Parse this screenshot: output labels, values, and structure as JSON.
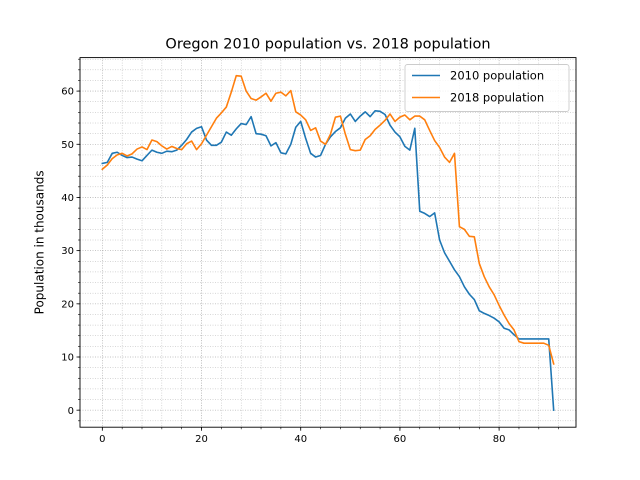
{
  "chart_data": {
    "type": "line",
    "title": "Oregon 2010 population vs. 2018 population",
    "xlabel": "",
    "ylabel": "Population in thousands",
    "xlim": [
      -4.5,
      95.5
    ],
    "ylim": [
      -3.2,
      66.3
    ],
    "xticks": [
      0,
      20,
      40,
      60,
      80
    ],
    "yticks": [
      0,
      10,
      20,
      30,
      40,
      50,
      60
    ],
    "grid": "both-minor-dotted",
    "legend": "top-right",
    "series": [
      {
        "name": "2010 population",
        "color": "#1f77b4",
        "values": [
          46.4,
          46.6,
          48.3,
          48.5,
          47.9,
          47.5,
          47.6,
          47.2,
          46.9,
          47.9,
          48.9,
          48.5,
          48.3,
          48.7,
          48.6,
          48.9,
          49.8,
          50.9,
          52.3,
          53.0,
          53.3,
          50.8,
          49.8,
          49.8,
          50.4,
          52.3,
          51.7,
          52.9,
          53.9,
          53.7,
          55.2,
          52.0,
          51.9,
          51.6,
          49.7,
          50.3,
          48.4,
          48.2,
          50.0,
          53.2,
          54.3,
          51.1,
          48.3,
          47.6,
          47.9,
          50.0,
          51.4,
          52.4,
          53.1,
          54.9,
          55.7,
          54.3,
          55.3,
          56.1,
          55.2,
          56.3,
          56.2,
          55.6,
          53.6,
          52.3,
          51.4,
          49.6,
          48.9,
          53.0,
          37.4,
          37.0,
          36.4,
          37.1,
          32.0,
          29.6,
          28.0,
          26.4,
          25.1,
          23.2,
          21.8,
          20.8,
          18.7,
          18.2,
          17.8,
          17.3,
          16.6,
          15.4,
          15.1,
          14.2,
          13.4,
          13.4,
          13.4,
          13.4,
          13.4,
          13.4,
          13.4,
          0.0
        ]
      },
      {
        "name": "2018 population",
        "color": "#ff7f0e",
        "values": [
          45.3,
          46.1,
          47.3,
          48.0,
          48.3,
          47.8,
          48.2,
          49.1,
          49.5,
          49.0,
          50.8,
          50.5,
          49.7,
          49.1,
          49.6,
          49.2,
          49.0,
          50.1,
          50.6,
          49.0,
          50.1,
          51.7,
          53.3,
          54.9,
          55.9,
          57.0,
          59.8,
          62.9,
          62.8,
          60.0,
          58.6,
          58.3,
          58.9,
          59.6,
          58.1,
          59.6,
          59.8,
          59.1,
          60.1,
          56.1,
          55.5,
          54.6,
          52.6,
          53.1,
          50.6,
          50.0,
          51.9,
          55.1,
          55.3,
          51.9,
          49.0,
          48.8,
          48.9,
          50.9,
          51.6,
          52.8,
          53.6,
          54.5,
          55.7,
          54.3,
          55.1,
          55.5,
          54.6,
          55.3,
          55.3,
          54.6,
          52.6,
          50.7,
          49.4,
          47.6,
          46.6,
          48.3,
          34.5,
          34.0,
          32.7,
          32.6,
          27.6,
          25.1,
          23.2,
          21.7,
          19.7,
          17.9,
          16.3,
          15.1,
          12.9,
          12.6,
          12.6,
          12.6,
          12.6,
          12.6,
          12.2,
          8.7
        ]
      }
    ]
  }
}
